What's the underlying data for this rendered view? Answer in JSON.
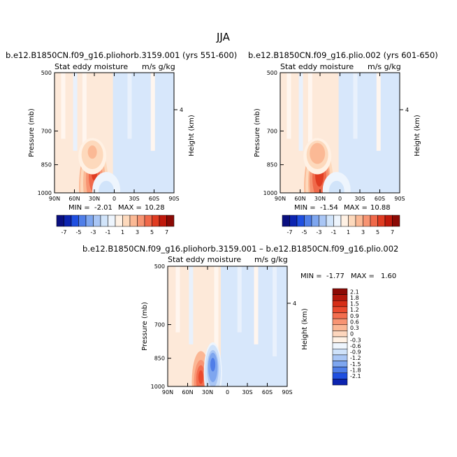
{
  "figure": {
    "title": "JJA"
  },
  "chart_data": [
    {
      "type": "heatmap",
      "panel": "left",
      "title": "b.e12.B1850CN.f09_g16.pliohorb.3159.001 (yrs 551-600)",
      "subtitle_left": "Stat eddy moisture",
      "subtitle_right": "m/s g/kg",
      "ylabel": "Pressure (mb)",
      "ylabel_right": "Height (km)",
      "x_ticks": [
        "90N",
        "60N",
        "30N",
        "0",
        "30S",
        "60S",
        "90S"
      ],
      "x_values": [
        90,
        60,
        30,
        0,
        -30,
        -60,
        -90
      ],
      "y_ticks": [
        "500",
        "700",
        "850",
        "1000"
      ],
      "y_values": [
        500,
        700,
        850,
        1000
      ],
      "y_right_ticks": [
        "4"
      ],
      "xlim": [
        90,
        -90
      ],
      "ylim": [
        1000,
        500
      ],
      "min_label": "MIN =",
      "min_value": "-2.01",
      "max_label": "MAX =",
      "max_value": "10.28",
      "features": [
        {
          "lat": 32,
          "p": 965,
          "value": 8.5
        },
        {
          "lat": 30,
          "p": 880,
          "value": 5.5
        },
        {
          "lat": 33,
          "p": 780,
          "value": 2.5
        },
        {
          "lat": 12,
          "p": 975,
          "value": -1.5
        }
      ]
    },
    {
      "type": "heatmap",
      "panel": "right",
      "title": "b.e12.B1850CN.f09_g16.plio.002 (yrs 601-650)",
      "subtitle_left": "Stat eddy moisture",
      "subtitle_right": "m/s g/kg",
      "ylabel": "Pressure (mb)",
      "ylabel_right": "Height (km)",
      "x_ticks": [
        "90N",
        "60N",
        "30N",
        "0",
        "30S",
        "60S",
        "90S"
      ],
      "x_values": [
        90,
        60,
        30,
        0,
        -30,
        -60,
        -90
      ],
      "y_ticks": [
        "500",
        "700",
        "850",
        "1000"
      ],
      "y_values": [
        500,
        700,
        850,
        1000
      ],
      "y_right_ticks": [
        "4"
      ],
      "xlim": [
        90,
        -90
      ],
      "ylim": [
        1000,
        500
      ],
      "min_label": "MIN =",
      "min_value": "-1.54",
      "max_label": "MAX =",
      "max_value": "10.88",
      "features": [
        {
          "lat": 33,
          "p": 965,
          "value": 9.0
        },
        {
          "lat": 31,
          "p": 880,
          "value": 5.8
        },
        {
          "lat": 34,
          "p": 780,
          "value": 2.6
        },
        {
          "lat": 5,
          "p": 975,
          "value": -1.3
        }
      ]
    },
    {
      "type": "heatmap",
      "panel": "difference",
      "title": "b.e12.B1850CN.f09_g16.pliohorb.3159.001 – b.e12.B1850CN.f09_g16.plio.002",
      "subtitle_left": "Stat eddy moisture",
      "subtitle_right": "m/s g/kg",
      "ylabel": "Pressure (mb)",
      "ylabel_right": "Height (km)",
      "x_ticks": [
        "90N",
        "60N",
        "30N",
        "0",
        "30S",
        "60S",
        "90S"
      ],
      "x_values": [
        90,
        60,
        30,
        0,
        -30,
        -60,
        -90
      ],
      "y_ticks": [
        "500",
        "700",
        "850",
        "1000"
      ],
      "y_values": [
        500,
        700,
        850,
        1000
      ],
      "y_right_ticks": [
        "4"
      ],
      "xlim": [
        90,
        -90
      ],
      "ylim": [
        1000,
        500
      ],
      "min_label": "MIN =",
      "min_value": "-1.77",
      "max_label": "MAX =",
      "max_value": "1.60",
      "features": [
        {
          "lat": 40,
          "p": 935,
          "value": 1.2
        },
        {
          "lat": 22,
          "p": 870,
          "value": -1.6
        }
      ]
    }
  ],
  "colorbar_top": {
    "labels": [
      "-7",
      "-5",
      "-3",
      "-1",
      "1",
      "3",
      "5",
      "7"
    ],
    "colors": [
      "#0a0f80",
      "#0c24b0",
      "#1f4fe0",
      "#4f7ee8",
      "#7ea6ef",
      "#a9c6f5",
      "#d1e4fa",
      "#eef5fd",
      "#fff1e4",
      "#fdd9bc",
      "#fbb995",
      "#f79472",
      "#f0694a",
      "#e03c22",
      "#c0190c",
      "#8c0a05"
    ]
  },
  "colorbar_diff": {
    "labels": [
      "2.1",
      "1.8",
      "1.5",
      "1.2",
      "0.9",
      "0.6",
      "0.3",
      "0",
      "-0.3",
      "-0.6",
      "-0.9",
      "-1.2",
      "-1.5",
      "-1.8",
      "-2.1"
    ],
    "colors": [
      "#8c0a05",
      "#b3170b",
      "#d62e17",
      "#ea4a2e",
      "#f36e4f",
      "#f89473",
      "#fbb795",
      "#fdd6bd",
      "#fff1e4",
      "#eef5fd",
      "#cfe2fa",
      "#a9c6f5",
      "#7ea6ef",
      "#4f7ee8",
      "#1f4fe0",
      "#0c24b0"
    ]
  }
}
